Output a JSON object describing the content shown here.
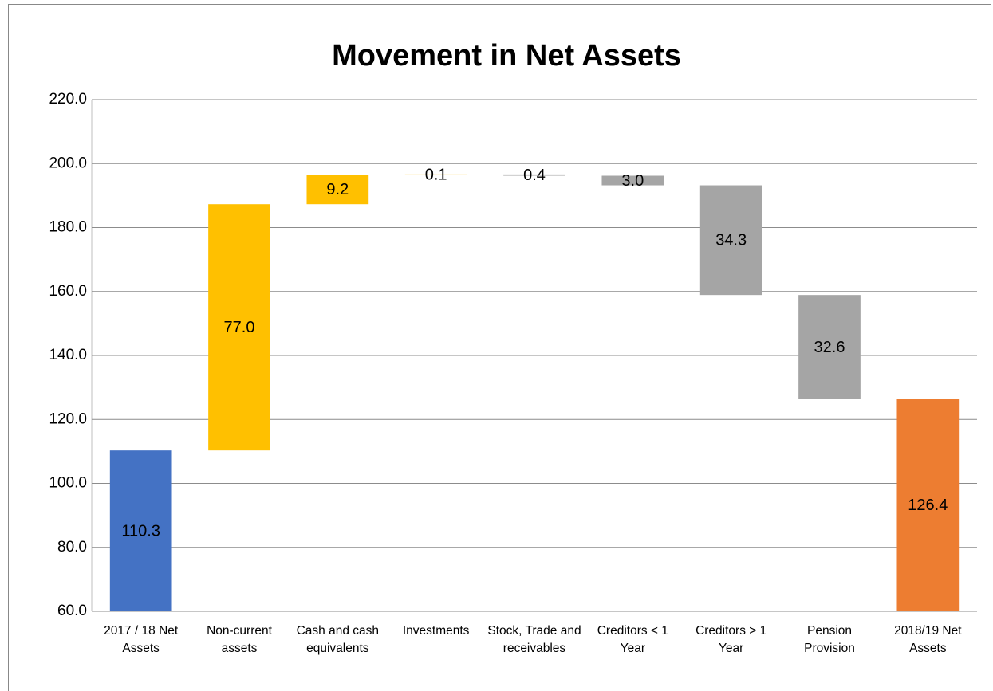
{
  "chart_data": {
    "type": "waterfall",
    "title": "Movement in Net Assets",
    "categories": [
      "2017 / 18 Net Assets",
      "Non-current assets",
      "Cash and cash equivalents",
      "Investments",
      "Stock, Trade and receivables",
      "Creditors < 1 Year",
      "Creditors > 1 Year",
      "Pension Provision",
      "2018/19 Net Assets"
    ],
    "measure": [
      "absolute",
      "relative",
      "relative",
      "relative",
      "relative",
      "relative",
      "relative",
      "relative",
      "total"
    ],
    "values": [
      110.3,
      77.0,
      9.2,
      0.1,
      -0.4,
      -3.0,
      -34.3,
      -32.6,
      126.4
    ],
    "value_labels": [
      "110.3",
      "77.0",
      "9.2",
      "0.1",
      "0.4",
      "3.0",
      "34.3",
      "32.6",
      "126.4"
    ],
    "colors": [
      "#4472c4",
      "#ffc000",
      "#ffc000",
      "#ffc000",
      "#a5a5a5",
      "#a5a5a5",
      "#a5a5a5",
      "#a5a5a5",
      "#ed7d31"
    ],
    "ylim": [
      60,
      220
    ],
    "yticks": [
      {
        "value": 60,
        "label": "60.0"
      },
      {
        "value": 80,
        "label": "80.0"
      },
      {
        "value": 100,
        "label": "100.0"
      },
      {
        "value": 120,
        "label": "120.0"
      },
      {
        "value": 140,
        "label": "140.0"
      },
      {
        "value": 160,
        "label": "160.0"
      },
      {
        "value": 180,
        "label": "180.0"
      },
      {
        "value": 200,
        "label": "200.0"
      },
      {
        "value": 220,
        "label": "220.0"
      }
    ],
    "grid": true
  }
}
